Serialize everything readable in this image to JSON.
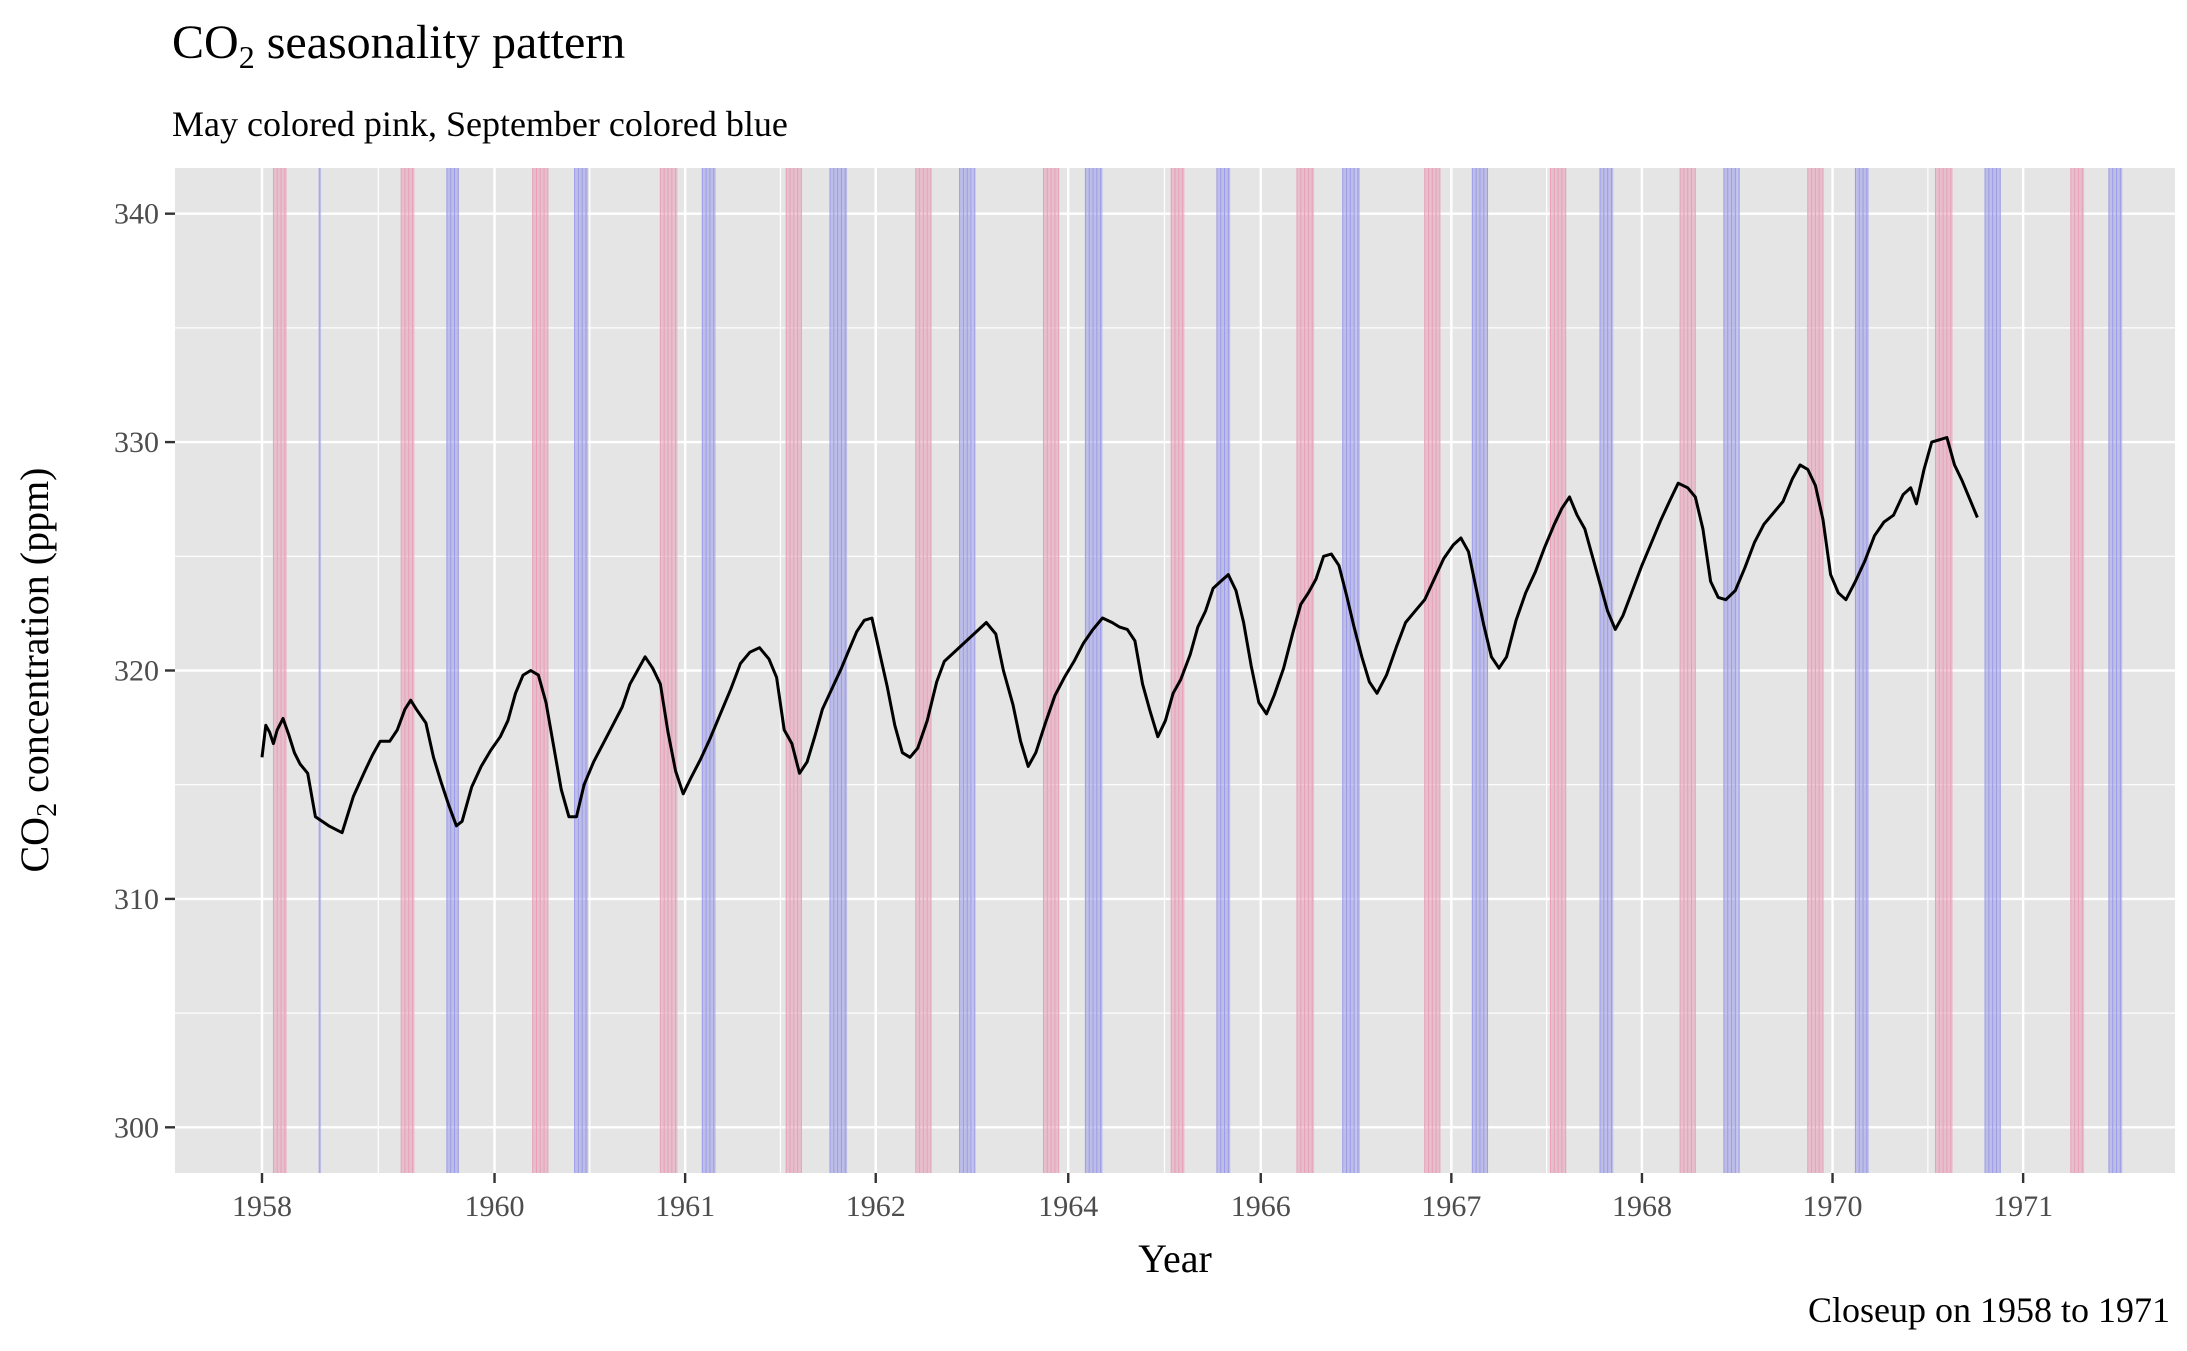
{
  "chart_data": {
    "type": "line",
    "title": {
      "prefix": "CO",
      "subscript": "2",
      "suffix": " seasonality pattern"
    },
    "subtitle": "May colored pink, September colored blue",
    "xlabel": "Year",
    "ylabel": {
      "prefix": "CO",
      "subscript": "2",
      "suffix": " concentration (ppm)"
    },
    "caption": "Closeup on 1958 to 1971",
    "x_tick_labels": [
      "1958",
      "1960",
      "1961",
      "1962",
      "1964",
      "1966",
      "1967",
      "1968",
      "1970",
      "1971"
    ],
    "y_ticks": [
      300,
      310,
      320,
      330,
      340
    ],
    "ylim": [
      298,
      342
    ],
    "grid": true,
    "x_note": "horizontal axis is an observation index (sequence of measurements); tick labels are the years printed on the axis",
    "index_range": [
      0,
      1000
    ],
    "x_tick_positions": [
      0,
      122,
      222,
      322,
      423,
      524,
      624,
      724,
      824,
      924
    ],
    "may_bands": [
      [
        6,
        13
      ],
      [
        73,
        80
      ],
      [
        142,
        150
      ],
      [
        209,
        218
      ],
      [
        275,
        283
      ],
      [
        343,
        351
      ],
      [
        410,
        418
      ],
      [
        477,
        484
      ],
      [
        543,
        552
      ],
      [
        610,
        618
      ],
      [
        676,
        684
      ],
      [
        744,
        752
      ],
      [
        811,
        819
      ],
      [
        878,
        887
      ],
      [
        949,
        956
      ]
    ],
    "september_bands": [
      [
        30,
        31
      ],
      [
        97,
        103
      ],
      [
        164,
        171
      ],
      [
        231,
        238
      ],
      [
        298,
        307
      ],
      [
        366,
        374
      ],
      [
        432,
        441
      ],
      [
        501,
        508
      ],
      [
        567,
        576
      ],
      [
        635,
        643
      ],
      [
        702,
        709
      ],
      [
        767,
        775
      ],
      [
        836,
        843
      ],
      [
        904,
        912
      ],
      [
        969,
        976
      ]
    ],
    "band_colors": {
      "may": "#e8a0b8",
      "september": "#9c9ce8"
    },
    "series": [
      {
        "color": "#000000",
        "points": [
          [
            0,
            316.2
          ],
          [
            2,
            317.6
          ],
          [
            4,
            317.3
          ],
          [
            6,
            316.8
          ],
          [
            8,
            317.4
          ],
          [
            11,
            317.9
          ],
          [
            14,
            317.2
          ],
          [
            17,
            316.4
          ],
          [
            20,
            315.9
          ],
          [
            24,
            315.5
          ],
          [
            28,
            313.6
          ],
          [
            35,
            313.2
          ],
          [
            42,
            312.9
          ],
          [
            48,
            314.5
          ],
          [
            54,
            315.6
          ],
          [
            58,
            316.3
          ],
          [
            62,
            316.9
          ],
          [
            67,
            316.9
          ],
          [
            71,
            317.4
          ],
          [
            75,
            318.3
          ],
          [
            78,
            318.7
          ],
          [
            81,
            318.3
          ],
          [
            86,
            317.7
          ],
          [
            90,
            316.2
          ],
          [
            94,
            315.1
          ],
          [
            98,
            314.1
          ],
          [
            102,
            313.2
          ],
          [
            105,
            313.4
          ],
          [
            110,
            314.9
          ],
          [
            115,
            315.8
          ],
          [
            120,
            316.5
          ],
          [
            125,
            317.1
          ],
          [
            129,
            317.8
          ],
          [
            133,
            319.0
          ],
          [
            137,
            319.8
          ],
          [
            141,
            320.0
          ],
          [
            145,
            319.8
          ],
          [
            149,
            318.6
          ],
          [
            153,
            316.7
          ],
          [
            157,
            314.8
          ],
          [
            161,
            313.6
          ],
          [
            165,
            313.6
          ],
          [
            169,
            315.0
          ],
          [
            174,
            316.0
          ],
          [
            179,
            316.8
          ],
          [
            184,
            317.6
          ],
          [
            189,
            318.4
          ],
          [
            193,
            319.4
          ],
          [
            197,
            320.0
          ],
          [
            201,
            320.6
          ],
          [
            205,
            320.1
          ],
          [
            209,
            319.4
          ],
          [
            213,
            317.3
          ],
          [
            217,
            315.6
          ],
          [
            221,
            314.6
          ],
          [
            225,
            315.3
          ],
          [
            230,
            316.1
          ],
          [
            235,
            317.0
          ],
          [
            240,
            318.0
          ],
          [
            246,
            319.2
          ],
          [
            251,
            320.3
          ],
          [
            256,
            320.8
          ],
          [
            261,
            321.0
          ],
          [
            266,
            320.5
          ],
          [
            270,
            319.7
          ],
          [
            274,
            317.4
          ],
          [
            278,
            316.8
          ],
          [
            282,
            315.5
          ],
          [
            286,
            316.0
          ],
          [
            290,
            317.1
          ],
          [
            294,
            318.3
          ],
          [
            299,
            319.2
          ],
          [
            304,
            320.1
          ],
          [
            308,
            320.9
          ],
          [
            312,
            321.7
          ],
          [
            316,
            322.2
          ],
          [
            320,
            322.3
          ],
          [
            324,
            320.8
          ],
          [
            328,
            319.3
          ],
          [
            332,
            317.6
          ],
          [
            336,
            316.4
          ],
          [
            340,
            316.2
          ],
          [
            344,
            316.6
          ],
          [
            349,
            317.8
          ],
          [
            354,
            319.5
          ],
          [
            358,
            320.4
          ],
          [
            380,
            322.1
          ],
          [
            385,
            321.6
          ],
          [
            389,
            320.0
          ],
          [
            394,
            318.5
          ],
          [
            398,
            316.9
          ],
          [
            402,
            315.8
          ],
          [
            406,
            316.4
          ],
          [
            411,
            317.7
          ],
          [
            416,
            318.9
          ],
          [
            421,
            319.7
          ],
          [
            426,
            320.4
          ],
          [
            431,
            321.2
          ],
          [
            436,
            321.8
          ],
          [
            441,
            322.3
          ],
          [
            446,
            322.1
          ],
          [
            450,
            321.9
          ],
          [
            454,
            321.8
          ],
          [
            458,
            321.3
          ],
          [
            462,
            319.4
          ],
          [
            466,
            318.2
          ],
          [
            470,
            317.1
          ],
          [
            474,
            317.8
          ],
          [
            478,
            319.0
          ],
          [
            482,
            319.6
          ],
          [
            487,
            320.7
          ],
          [
            491,
            321.9
          ],
          [
            495,
            322.6
          ],
          [
            499,
            323.6
          ],
          [
            503,
            323.9
          ],
          [
            507,
            324.2
          ],
          [
            511,
            323.5
          ],
          [
            515,
            322.1
          ],
          [
            519,
            320.2
          ],
          [
            523,
            318.6
          ],
          [
            527,
            318.1
          ],
          [
            531,
            318.9
          ],
          [
            536,
            320.1
          ],
          [
            541,
            321.7
          ],
          [
            545,
            322.9
          ],
          [
            549,
            323.4
          ],
          [
            553,
            324.0
          ],
          [
            557,
            325.0
          ],
          [
            561,
            325.1
          ],
          [
            565,
            324.6
          ],
          [
            569,
            323.3
          ],
          [
            573,
            321.9
          ],
          [
            577,
            320.6
          ],
          [
            581,
            319.5
          ],
          [
            585,
            319.0
          ],
          [
            590,
            319.8
          ],
          [
            595,
            321.0
          ],
          [
            600,
            322.1
          ],
          [
            605,
            322.6
          ],
          [
            610,
            323.1
          ],
          [
            615,
            324.0
          ],
          [
            620,
            324.9
          ],
          [
            625,
            325.5
          ],
          [
            629,
            325.8
          ],
          [
            633,
            325.2
          ],
          [
            637,
            323.6
          ],
          [
            641,
            322.0
          ],
          [
            645,
            320.6
          ],
          [
            649,
            320.1
          ],
          [
            653,
            320.6
          ],
          [
            658,
            322.2
          ],
          [
            663,
            323.4
          ],
          [
            668,
            324.3
          ],
          [
            673,
            325.4
          ],
          [
            678,
            326.4
          ],
          [
            682,
            327.1
          ],
          [
            686,
            327.6
          ],
          [
            690,
            326.8
          ],
          [
            694,
            326.2
          ],
          [
            698,
            325.0
          ],
          [
            702,
            323.8
          ],
          [
            706,
            322.6
          ],
          [
            710,
            321.8
          ],
          [
            714,
            322.4
          ],
          [
            719,
            323.5
          ],
          [
            724,
            324.6
          ],
          [
            729,
            325.6
          ],
          [
            734,
            326.6
          ],
          [
            739,
            327.5
          ],
          [
            743,
            328.2
          ],
          [
            748,
            328.0
          ],
          [
            752,
            327.6
          ],
          [
            756,
            326.2
          ],
          [
            760,
            323.9
          ],
          [
            764,
            323.2
          ],
          [
            768,
            323.1
          ],
          [
            773,
            323.5
          ],
          [
            778,
            324.5
          ],
          [
            783,
            325.6
          ],
          [
            788,
            326.4
          ],
          [
            793,
            326.9
          ],
          [
            798,
            327.4
          ],
          [
            803,
            328.4
          ],
          [
            807,
            329.0
          ],
          [
            811,
            328.8
          ],
          [
            815,
            328.1
          ],
          [
            819,
            326.6
          ],
          [
            823,
            324.2
          ],
          [
            827,
            323.4
          ],
          [
            831,
            323.1
          ],
          [
            836,
            323.9
          ],
          [
            841,
            324.8
          ],
          [
            846,
            325.9
          ],
          [
            851,
            326.5
          ],
          [
            856,
            326.8
          ],
          [
            861,
            327.7
          ],
          [
            865,
            328.0
          ],
          [
            868,
            327.3
          ],
          [
            872,
            328.8
          ],
          [
            876,
            330.0
          ],
          [
            880,
            330.1
          ],
          [
            884,
            330.2
          ],
          [
            888,
            329.0
          ],
          [
            892,
            328.3
          ],
          [
            896,
            327.5
          ],
          [
            900,
            326.7
          ]
        ]
      }
    ]
  }
}
